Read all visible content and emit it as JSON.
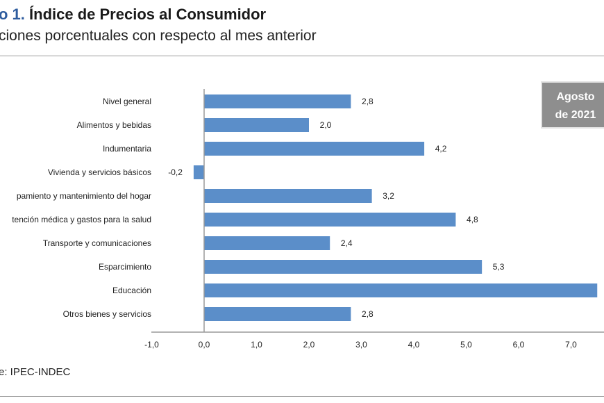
{
  "chart_data": {
    "type": "bar",
    "orientation": "horizontal",
    "title_prefix": "o 1.",
    "title": "Índice de Precios al Consumidor",
    "subtitle": "ciones porcentuales con respecto al mes anterior",
    "categories": [
      "Nivel  general",
      "Alimentos y bebidas",
      "Indumentaria",
      "Vivienda y servicios básicos",
      "pamiento y  mantenimiento del hogar",
      "tención médica y gastos para la salud",
      "Transporte y comunicaciones",
      "Esparcimiento",
      "Educación",
      "Otros bienes y servicios"
    ],
    "values": [
      2.8,
      2.0,
      4.2,
      -0.2,
      3.2,
      4.8,
      2.4,
      5.3,
      7.5,
      2.8
    ],
    "value_labels": [
      "2,8",
      "2,0",
      "4,2",
      "-0,2",
      "3,2",
      "4,8",
      "2,4",
      "5,3",
      "",
      "2,8"
    ],
    "xticks": [
      "-1,0",
      "0,0",
      "1,0",
      "2,0",
      "3,0",
      "4,0",
      "5,0",
      "6,0",
      "7,0"
    ],
    "xlim": [
      -1,
      7.6
    ],
    "grid": false,
    "bar_color": "#5b8ec9",
    "badge": {
      "line1": "Agosto",
      "line2": "de 2021"
    },
    "source": "e: IPEC-INDEC"
  }
}
